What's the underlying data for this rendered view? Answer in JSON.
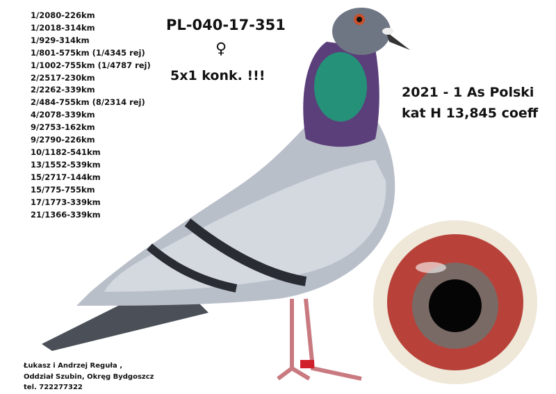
{
  "results": [
    "1/2080-226km",
    "1/2018-314km",
    "1/929-314km",
    "1/801-575km (1/4345 rej)",
    "1/1002-755km (1/4787 rej)",
    "2/2517-230km",
    "2/2262-339km",
    "2/484-755km (8/2314 rej)",
    "4/2078-339km",
    "9/2753-162km",
    "9/2790-226km",
    "10/1182-541km",
    "13/1552-539km",
    "15/2717-144km",
    "15/775-755km",
    "17/1773-339km",
    "21/1366-339km"
  ],
  "ring_number": "PL-040-17-351",
  "sex_symbol": "♀",
  "wins": "5x1 konk. !!!",
  "title": {
    "line1": "2021 - 1 As Polski",
    "line2": "kat H 13,845 coeff"
  },
  "owner": {
    "line1": "Łukasz i Andrzej Reguła ,",
    "line2": "Oddział Szubin, Okręg Bydgoszcz",
    "line3": "tel. 722277322"
  },
  "colors": {
    "body": "#b9bfc9",
    "neck_green": "#1f9a78",
    "neck_purple": "#5b3f7a",
    "bar": "#2a2c33",
    "eye_red": "#b8423a",
    "ring_red": "#d0202c"
  }
}
